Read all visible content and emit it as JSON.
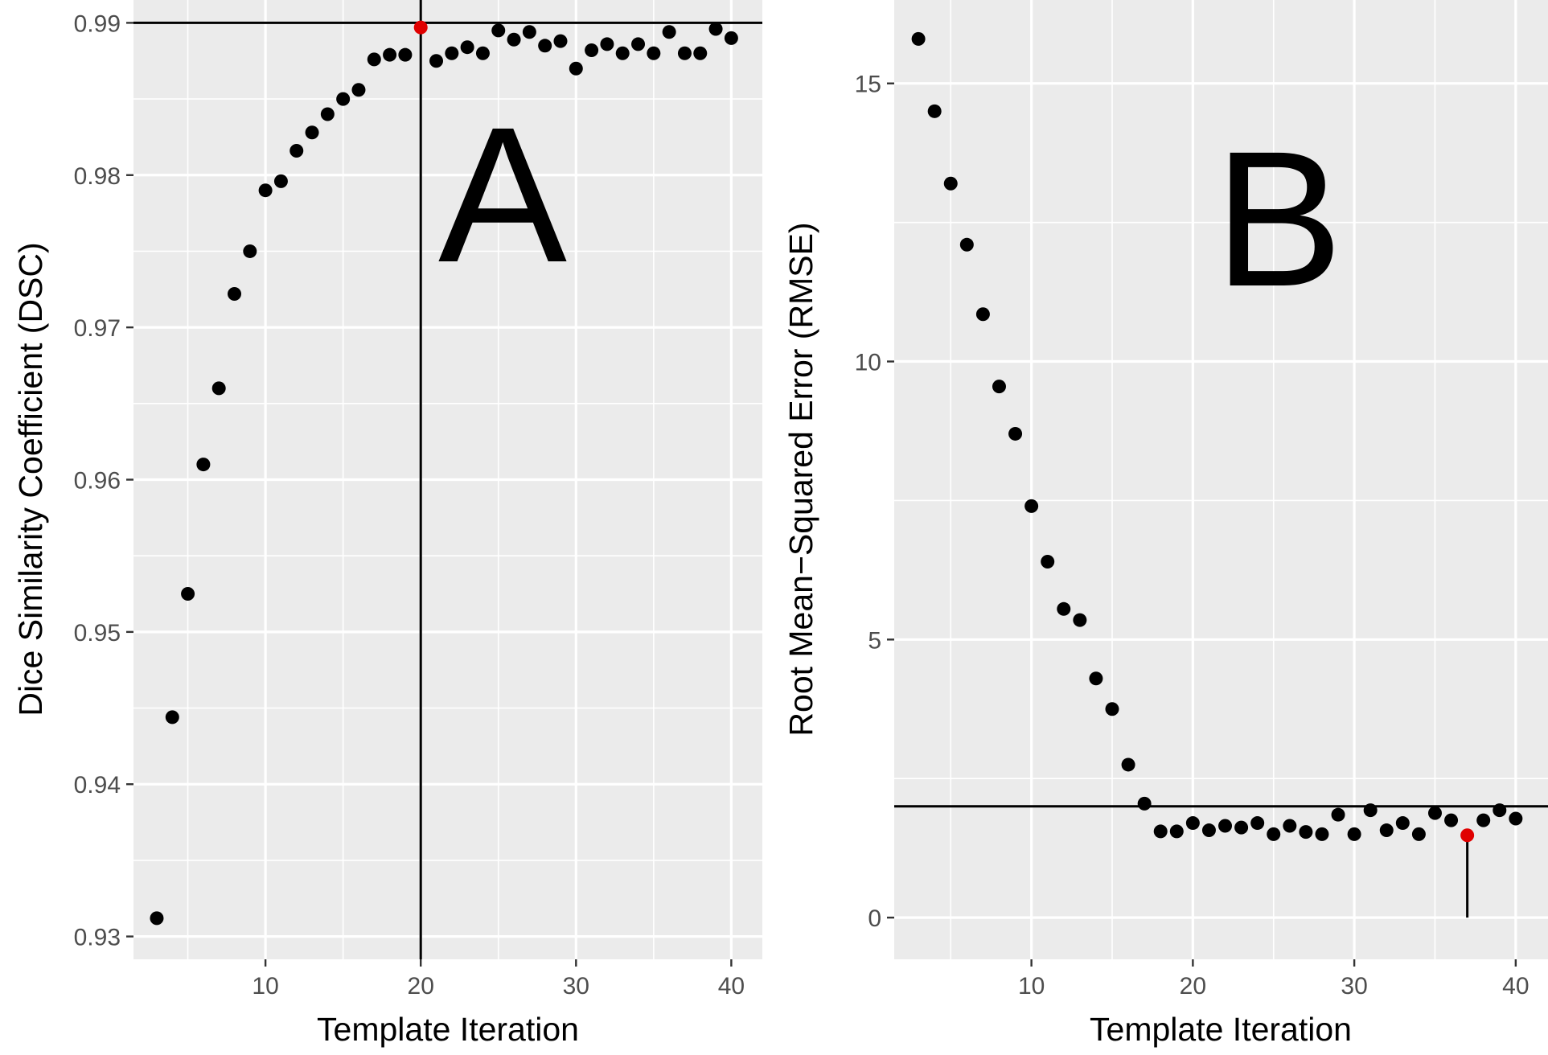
{
  "chart_data": [
    {
      "type": "scatter",
      "panel_label": "A",
      "xlabel": "Template Iteration",
      "ylabel": "Dice Similarity Coefficient (DSC)",
      "xlim": [
        1.5,
        42
      ],
      "ylim": [
        0.9285,
        0.9915
      ],
      "xticks": [
        10,
        20,
        30,
        40
      ],
      "xtick_labels": [
        "10",
        "20",
        "30",
        "40"
      ],
      "yticks": [
        0.93,
        0.94,
        0.95,
        0.96,
        0.97,
        0.98,
        0.99
      ],
      "ytick_labels": [
        "0.93",
        "0.94",
        "0.95",
        "0.96",
        "0.97",
        "0.98",
        "0.99"
      ],
      "grid": true,
      "x": [
        3,
        4,
        5,
        6,
        7,
        8,
        9,
        10,
        11,
        12,
        13,
        14,
        15,
        16,
        17,
        18,
        19,
        20,
        21,
        22,
        23,
        24,
        25,
        26,
        27,
        28,
        29,
        30,
        31,
        32,
        33,
        34,
        35,
        36,
        37,
        38,
        39,
        40
      ],
      "y": [
        0.9312,
        0.9444,
        0.9525,
        0.961,
        0.966,
        0.9722,
        0.975,
        0.979,
        0.9796,
        0.9816,
        0.9828,
        0.984,
        0.985,
        0.9856,
        0.9876,
        0.9879,
        0.9879,
        0.9897,
        0.9875,
        0.988,
        0.9884,
        0.988,
        0.9895,
        0.9889,
        0.9894,
        0.9885,
        0.9888,
        0.987,
        0.9882,
        0.9886,
        0.988,
        0.9886,
        0.988,
        0.9894,
        0.988,
        0.988,
        0.9896,
        0.989
      ],
      "highlight": {
        "x": 20,
        "y": 0.9897,
        "color": "#e00000"
      },
      "hline": 0.99,
      "vline_x": 20,
      "point_color": "#000000",
      "panel_background": "#ebebeb",
      "grid_color": "#ffffff"
    },
    {
      "type": "scatter",
      "panel_label": "B",
      "xlabel": "Template Iteration",
      "ylabel": "Root Mean−Squared Error (RMSE)",
      "xlim": [
        1.5,
        42
      ],
      "ylim": [
        -0.75,
        16.5
      ],
      "xticks": [
        10,
        20,
        30,
        40
      ],
      "xtick_labels": [
        "10",
        "20",
        "30",
        "40"
      ],
      "yticks": [
        0,
        5,
        10,
        15
      ],
      "ytick_labels": [
        "0",
        "5",
        "10",
        "15"
      ],
      "grid": true,
      "x": [
        3,
        4,
        5,
        6,
        7,
        8,
        9,
        10,
        11,
        12,
        13,
        14,
        15,
        16,
        17,
        18,
        19,
        20,
        21,
        22,
        23,
        24,
        25,
        26,
        27,
        28,
        29,
        30,
        31,
        32,
        33,
        34,
        35,
        36,
        37,
        38,
        39,
        40
      ],
      "y": [
        15.8,
        14.5,
        13.2,
        12.1,
        10.85,
        9.55,
        8.7,
        7.4,
        6.4,
        5.55,
        5.35,
        4.3,
        3.75,
        2.75,
        2.05,
        1.55,
        1.55,
        1.7,
        1.57,
        1.65,
        1.62,
        1.7,
        1.5,
        1.65,
        1.54,
        1.5,
        1.85,
        1.5,
        1.93,
        1.57,
        1.7,
        1.5,
        1.88,
        1.75,
        1.48,
        1.75,
        1.93,
        1.78
      ],
      "highlight": {
        "x": 37,
        "y": 1.48,
        "color": "#e00000"
      },
      "hline": 2.0,
      "vline_segment": {
        "x": 37,
        "y_from": 0,
        "y_to": 1.48
      },
      "point_color": "#000000",
      "panel_background": "#ebebeb",
      "grid_color": "#ffffff"
    }
  ]
}
